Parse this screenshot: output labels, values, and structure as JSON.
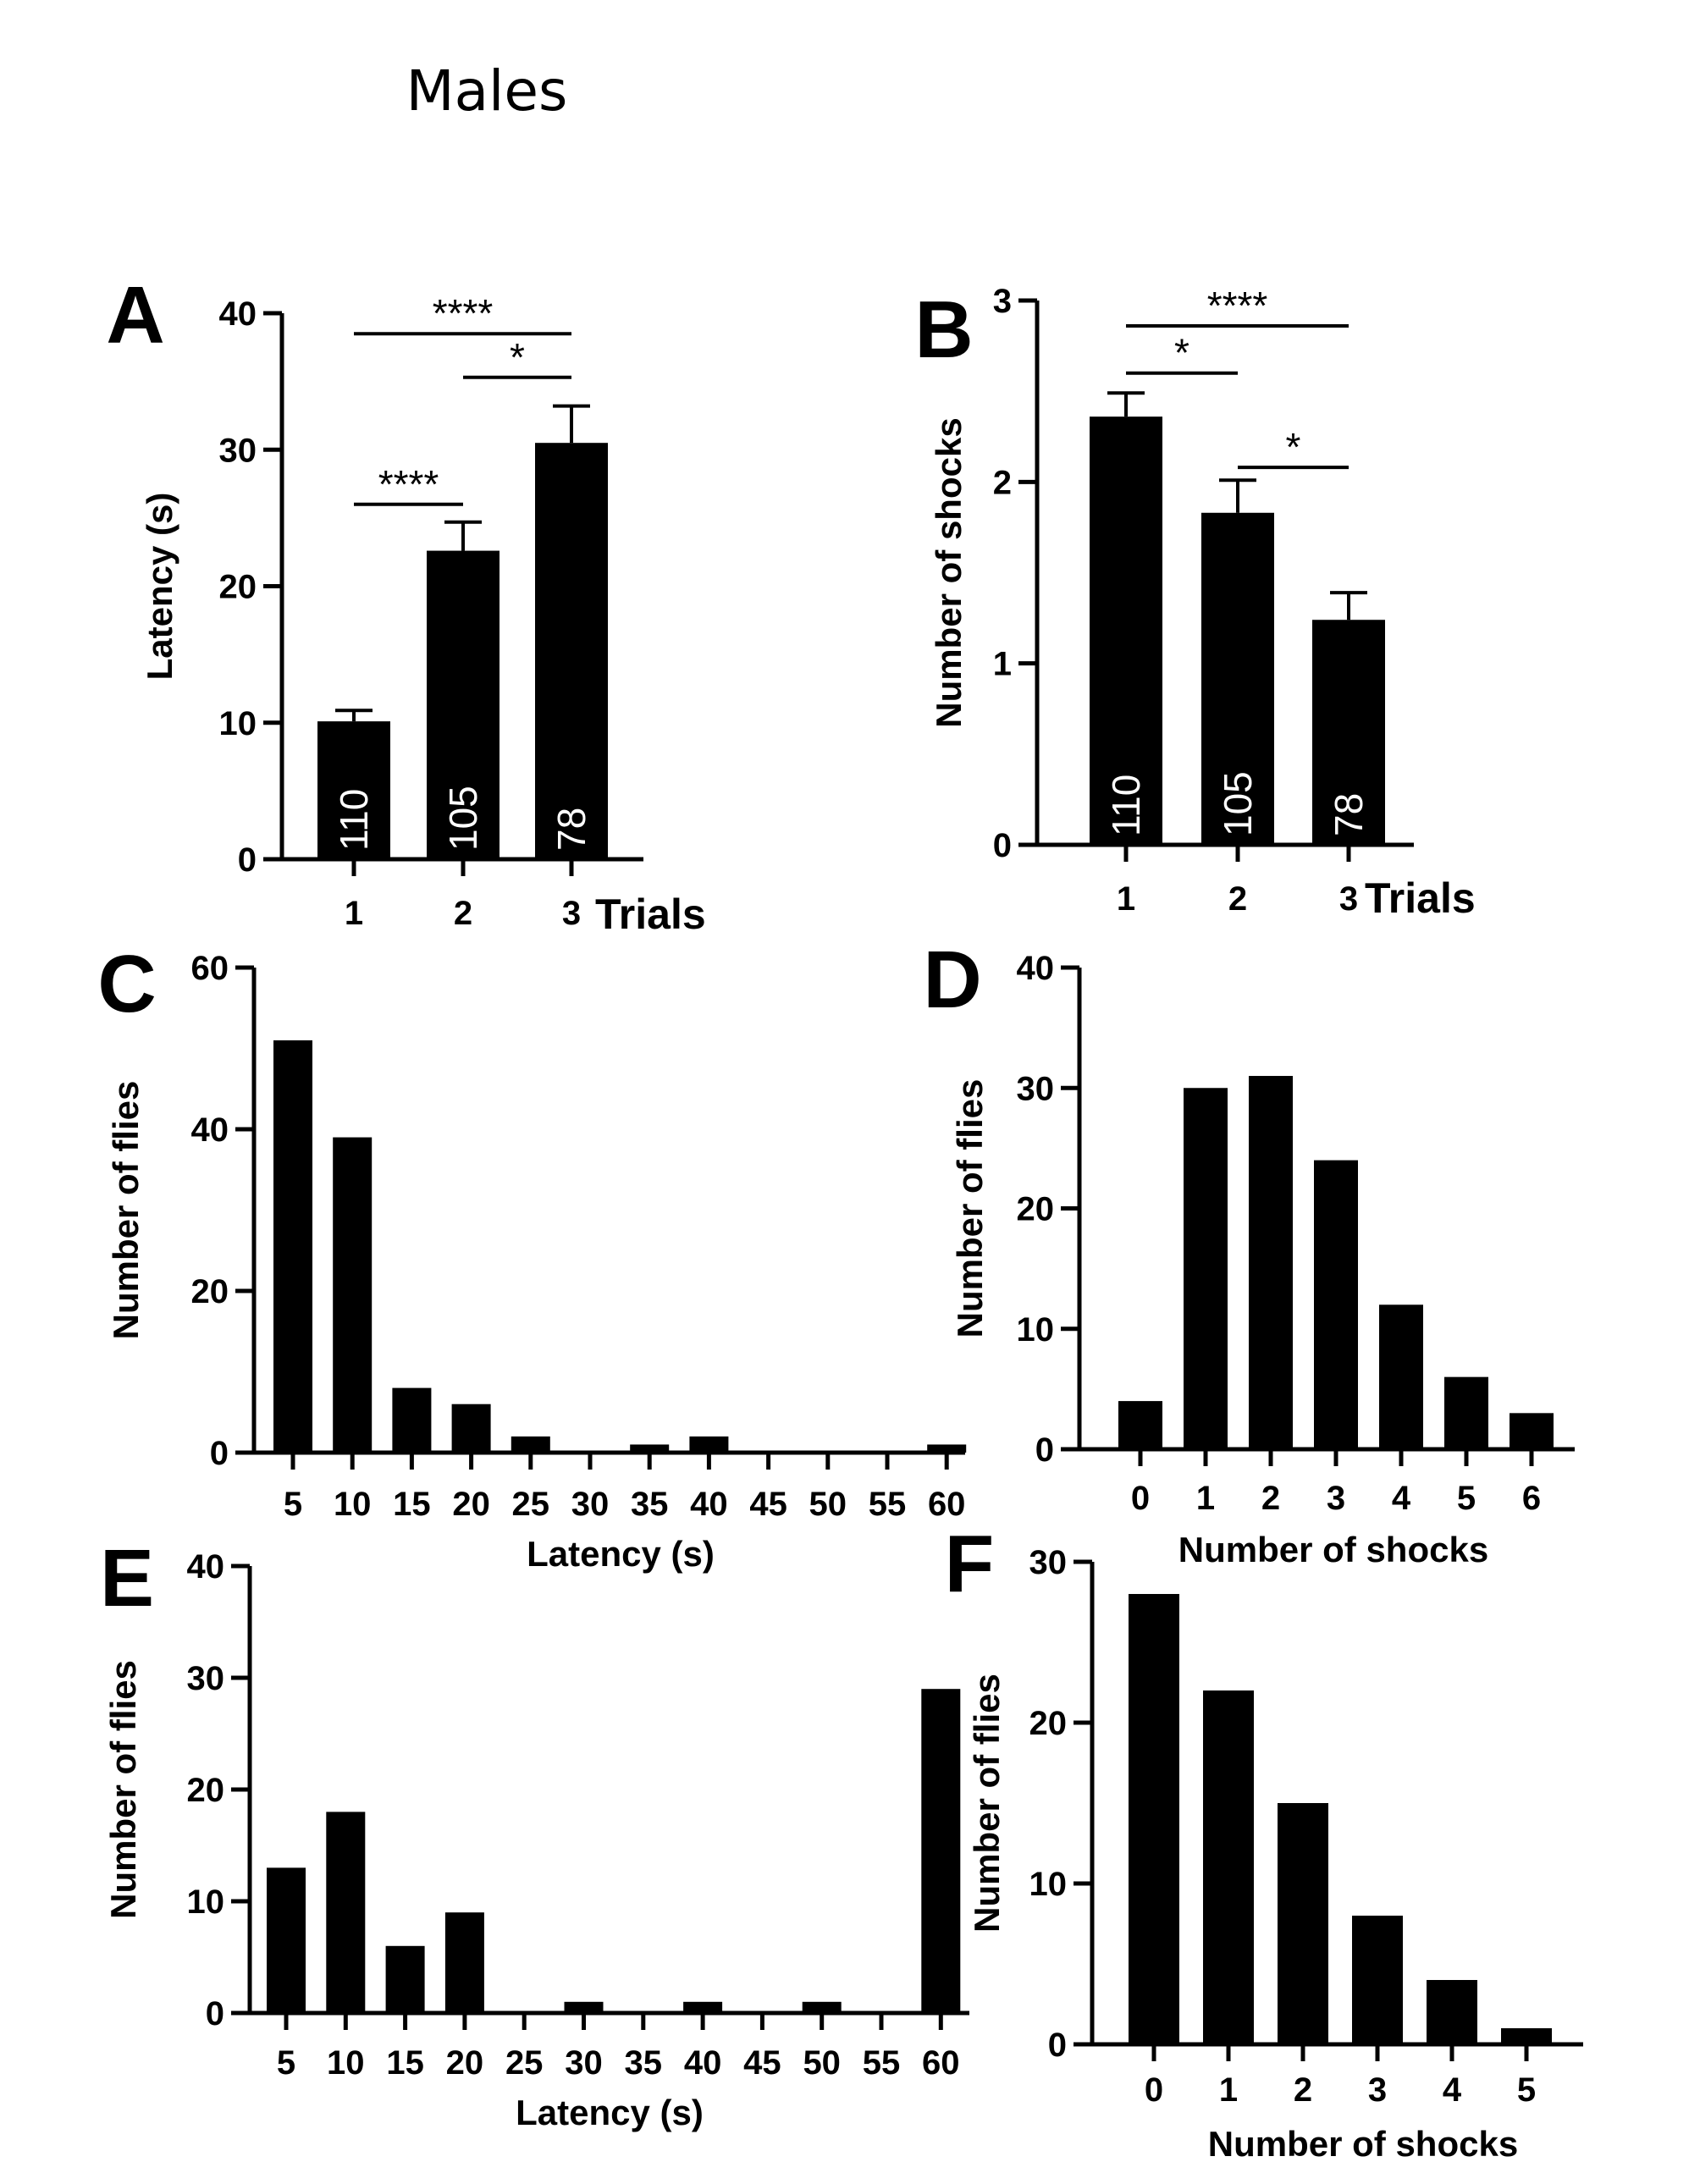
{
  "figure": {
    "title": "Males"
  },
  "chart_data": [
    {
      "panel": "A",
      "type": "bar",
      "categories": [
        "1",
        "2",
        "3"
      ],
      "values": [
        10.1,
        22.6,
        30.5
      ],
      "errors": [
        0.8,
        2.1,
        2.7
      ],
      "bar_labels": [
        "110",
        "105",
        "78"
      ],
      "ylabel": "Latency (s)",
      "xlabel": "Trials",
      "ylim": [
        0,
        40
      ],
      "yticks": [
        0,
        10,
        20,
        30,
        40
      ],
      "significance": [
        {
          "from": 0,
          "to": 2,
          "label": "****",
          "y": 38.5
        },
        {
          "from": 1,
          "to": 2,
          "label": "*",
          "y": 35.3
        },
        {
          "from": 0,
          "to": 1,
          "label": "****",
          "y": 26.0
        }
      ]
    },
    {
      "panel": "B",
      "type": "bar",
      "categories": [
        "1",
        "2",
        "3"
      ],
      "values": [
        2.36,
        1.83,
        1.24
      ],
      "errors": [
        0.13,
        0.18,
        0.15
      ],
      "bar_labels": [
        "110",
        "105",
        "78"
      ],
      "ylabel": "Number of shocks",
      "xlabel": "Trials",
      "ylim": [
        0,
        3
      ],
      "yticks": [
        0,
        1,
        2,
        3
      ],
      "significance": [
        {
          "from": 0,
          "to": 2,
          "label": "****",
          "y": 2.86
        },
        {
          "from": 0,
          "to": 1,
          "label": "*",
          "y": 2.6
        },
        {
          "from": 1,
          "to": 2,
          "label": "*",
          "y": 2.08
        }
      ]
    },
    {
      "panel": "C",
      "type": "bar",
      "categories": [
        "5",
        "10",
        "15",
        "20",
        "25",
        "30",
        "35",
        "40",
        "45",
        "50",
        "55",
        "60"
      ],
      "values": [
        51,
        39,
        8,
        6,
        2,
        0,
        1,
        2,
        0,
        0,
        0,
        1
      ],
      "ylabel": "Number of flies",
      "xlabel": "Latency (s)",
      "ylim": [
        0,
        60
      ],
      "yticks": [
        0,
        20,
        40,
        60
      ]
    },
    {
      "panel": "D",
      "type": "bar",
      "categories": [
        "0",
        "1",
        "2",
        "3",
        "4",
        "5",
        "6"
      ],
      "values": [
        4,
        30,
        31,
        24,
        12,
        6,
        3
      ],
      "ylabel": "Number of flies",
      "xlabel": "Number of shocks",
      "ylim": [
        0,
        40
      ],
      "yticks": [
        0,
        10,
        20,
        30,
        40
      ]
    },
    {
      "panel": "E",
      "type": "bar",
      "categories": [
        "5",
        "10",
        "15",
        "20",
        "25",
        "30",
        "35",
        "40",
        "45",
        "50",
        "55",
        "60"
      ],
      "values": [
        13,
        18,
        6,
        9,
        0,
        1,
        0,
        1,
        0,
        1,
        0,
        29
      ],
      "ylabel": "Number of flies",
      "xlabel": "Latency (s)",
      "ylim": [
        0,
        40
      ],
      "yticks": [
        0,
        10,
        20,
        30,
        40
      ]
    },
    {
      "panel": "F",
      "type": "bar",
      "categories": [
        "0",
        "1",
        "2",
        "3",
        "4",
        "5"
      ],
      "values": [
        28,
        22,
        15,
        8,
        4,
        1
      ],
      "ylabel": "Number of flies",
      "xlabel": "Number of shocks",
      "ylim": [
        0,
        30
      ],
      "yticks": [
        0,
        10,
        20,
        30
      ]
    }
  ]
}
